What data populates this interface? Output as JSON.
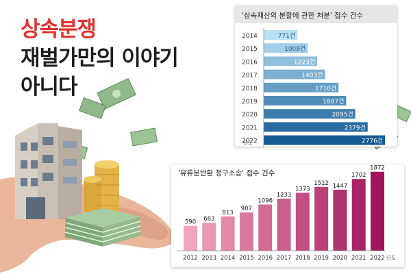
{
  "headline": {
    "line1": "상속분쟁",
    "line2": "재벌가만의  이야기",
    "line3": "아니다"
  },
  "colors": {
    "headline_red": "#e0312f",
    "chart1_light": "#b9e0f3",
    "chart1_dark": "#135b95",
    "chart2_light": "#f2a6bd",
    "chart2_dark": "#a0155a"
  },
  "chart_data": [
    {
      "type": "bar",
      "orientation": "horizontal",
      "title": "'상속재산의 분할에 관한 처분' 접수 건수",
      "categories": [
        "2014",
        "2015",
        "2016",
        "2017",
        "2018",
        "2019",
        "2020",
        "2021",
        "2022"
      ],
      "values": [
        771,
        1008,
        1223,
        1403,
        1710,
        1887,
        2095,
        2379,
        2776
      ],
      "value_labels": [
        "771건",
        "1008건",
        "1223건",
        "1403건",
        "1710건",
        "1887건",
        "2095건",
        "2379건",
        "2776건"
      ],
      "axis_unit": "년도",
      "xlim": [
        0,
        2900
      ],
      "grid": false
    },
    {
      "type": "bar",
      "orientation": "vertical",
      "title": "'유류분반환 청구소송' 접수 건수",
      "categories": [
        "2012",
        "2013",
        "2014",
        "2015",
        "2016",
        "2017",
        "2018",
        "2019",
        "2020",
        "2021",
        "2022"
      ],
      "values": [
        590,
        663,
        813,
        907,
        1096,
        1233,
        1373,
        1512,
        1447,
        1702,
        1872
      ],
      "value_labels": [
        "590",
        "663",
        "813",
        "907",
        "1096",
        "1233",
        "1373",
        "1512",
        "1447",
        "1702",
        "1872"
      ],
      "axis_unit": "년도",
      "ylim": [
        0,
        1900
      ],
      "grid": false
    }
  ]
}
